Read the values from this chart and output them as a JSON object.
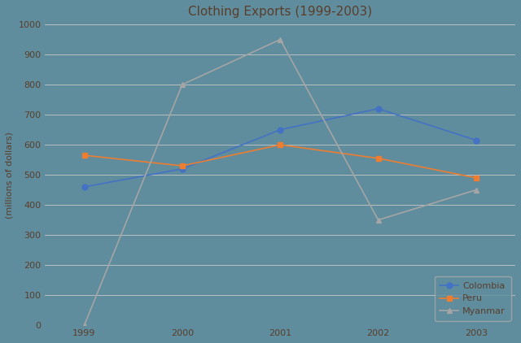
{
  "title": "Clothing Exports (1999-2003)",
  "xlabel": "",
  "ylabel": "(millions of dollars)",
  "years": [
    1999,
    2000,
    2001,
    2002,
    2003
  ],
  "series": {
    "Colombia": {
      "values": [
        460,
        520,
        650,
        720,
        615
      ],
      "color": "#4472C4",
      "marker": "o"
    },
    "Peru": {
      "values": [
        565,
        530,
        600,
        555,
        490
      ],
      "color": "#ED7D31",
      "marker": "s"
    },
    "Myanmar": {
      "values": [
        0,
        800,
        950,
        350,
        450
      ],
      "color": "#A5A5A5",
      "marker": "^"
    }
  },
  "ylim": [
    0,
    1000
  ],
  "yticks": [
    0,
    100,
    200,
    300,
    400,
    500,
    600,
    700,
    800,
    900,
    1000
  ],
  "bg_color": "#5f8d9d",
  "grid_color": "#c8c8c8",
  "title_color": "#5a3e2b",
  "tick_color": "#5a3e2b",
  "legend_loc": "lower right",
  "figsize": [
    6.4,
    4.22
  ],
  "dpi": 100,
  "title_fontsize": 11,
  "tick_fontsize": 8,
  "ylabel_fontsize": 8
}
